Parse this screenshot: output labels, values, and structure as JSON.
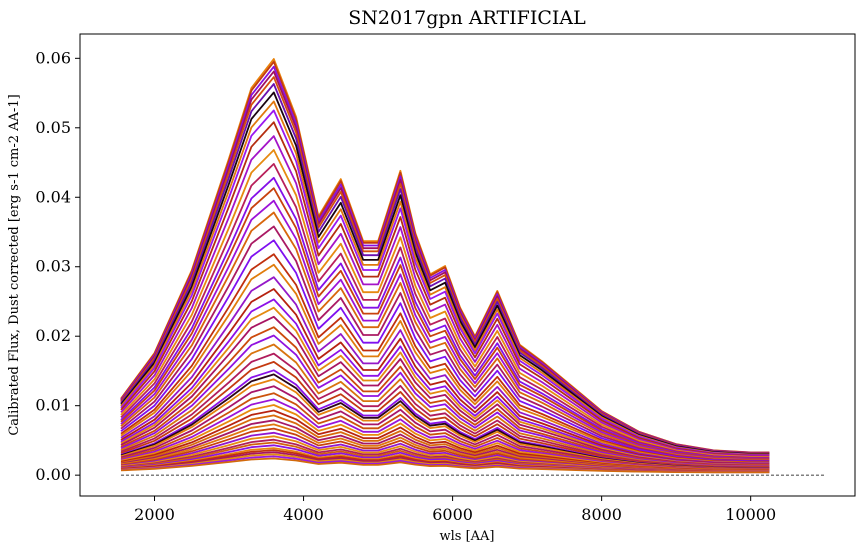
{
  "chart_data": {
    "type": "line",
    "title": "SN2017gpn ARTIFICIAL",
    "xlabel": "wls [AA]",
    "ylabel": "Calibrated Flux, Dust corrected [erg s-1 cm-2 AA-1]",
    "xlim": [
      1000,
      11400
    ],
    "ylim": [
      -0.003,
      0.0635
    ],
    "xticks": [
      2000,
      4000,
      6000,
      8000,
      10000
    ],
    "xtick_labels": [
      "2000",
      "4000",
      "6000",
      "8000",
      "10000"
    ],
    "yticks": [
      0.0,
      0.01,
      0.02,
      0.03,
      0.04,
      0.05,
      0.06
    ],
    "ytick_labels": [
      "0.00",
      "0.01",
      "0.02",
      "0.03",
      "0.04",
      "0.05",
      "0.06"
    ],
    "grid": false,
    "legend": "none",
    "reference_line": {
      "y": 0.0,
      "x": [
        1550,
        11000
      ],
      "style": "dashed",
      "color": "#000000"
    },
    "template_x": [
      1550,
      2000,
      2500,
      3000,
      3300,
      3600,
      3900,
      4200,
      4500,
      4800,
      5000,
      5300,
      5500,
      5700,
      5900,
      6100,
      6300,
      6600,
      6900,
      7200,
      7600,
      8000,
      8500,
      9000,
      9500,
      10000,
      10250
    ],
    "template_profile": [
      0.18,
      0.29,
      0.49,
      0.76,
      0.93,
      1.0,
      0.86,
      0.62,
      0.71,
      0.56,
      0.56,
      0.73,
      0.58,
      0.48,
      0.5,
      0.4,
      0.33,
      0.44,
      0.31,
      0.27,
      0.21,
      0.15,
      0.1,
      0.07,
      0.055,
      0.05,
      0.05
    ],
    "series": [
      {
        "peak": 0.0596,
        "color": "#e8820a"
      },
      {
        "peak": 0.0592,
        "color": "#c23b12"
      },
      {
        "peak": 0.0585,
        "color": "#8a12e0"
      },
      {
        "peak": 0.0578,
        "color": "#a01060"
      },
      {
        "peak": 0.057,
        "color": "#d5500c"
      },
      {
        "peak": 0.056,
        "color": "#6b10b0"
      },
      {
        "peak": 0.0548,
        "color": "#1a0410"
      },
      {
        "peak": 0.0535,
        "color": "#e0780e"
      },
      {
        "peak": 0.0522,
        "color": "#9a18f0"
      },
      {
        "peak": 0.0505,
        "color": "#b52e10"
      },
      {
        "peak": 0.0485,
        "color": "#a414c8"
      },
      {
        "peak": 0.0465,
        "color": "#e68a10"
      },
      {
        "peak": 0.0445,
        "color": "#b8205a"
      },
      {
        "peak": 0.0425,
        "color": "#8410e8"
      },
      {
        "peak": 0.041,
        "color": "#c8420e"
      },
      {
        "peak": 0.0392,
        "color": "#9c12d8"
      },
      {
        "peak": 0.0375,
        "color": "#d8660c"
      },
      {
        "peak": 0.0355,
        "color": "#aa1a64"
      },
      {
        "peak": 0.0335,
        "color": "#7e10f0"
      },
      {
        "peak": 0.0315,
        "color": "#c0300e"
      },
      {
        "peak": 0.03,
        "color": "#e07c0c"
      },
      {
        "peak": 0.0282,
        "color": "#9418c8"
      },
      {
        "peak": 0.0265,
        "color": "#b62210"
      },
      {
        "peak": 0.025,
        "color": "#8c10e8"
      },
      {
        "peak": 0.0238,
        "color": "#e48a10"
      },
      {
        "peak": 0.0225,
        "color": "#a81462"
      },
      {
        "peak": 0.021,
        "color": "#cc4a0c"
      },
      {
        "peak": 0.0198,
        "color": "#9012e0"
      },
      {
        "peak": 0.0185,
        "color": "#d8740e"
      },
      {
        "peak": 0.0172,
        "color": "#b01c5c"
      },
      {
        "peak": 0.016,
        "color": "#c43a10"
      },
      {
        "peak": 0.0148,
        "color": "#8a12e8"
      },
      {
        "peak": 0.0142,
        "color": "#2a0618"
      },
      {
        "peak": 0.0135,
        "color": "#e6820e"
      },
      {
        "peak": 0.0125,
        "color": "#a8166a"
      },
      {
        "peak": 0.0115,
        "color": "#cc520c"
      },
      {
        "peak": 0.0106,
        "color": "#9a14d8"
      },
      {
        "peak": 0.0098,
        "color": "#e88a0e"
      },
      {
        "peak": 0.009,
        "color": "#b82410"
      },
      {
        "peak": 0.0083,
        "color": "#d86a0c"
      },
      {
        "peak": 0.0076,
        "color": "#a41868"
      },
      {
        "peak": 0.007,
        "color": "#e07810"
      },
      {
        "peak": 0.0064,
        "color": "#c8420e"
      },
      {
        "peak": 0.0058,
        "color": "#9016d0"
      },
      {
        "peak": 0.0053,
        "color": "#e68c12"
      },
      {
        "peak": 0.0048,
        "color": "#b0205c"
      },
      {
        "peak": 0.0044,
        "color": "#d2600c"
      },
      {
        "peak": 0.004,
        "color": "#8c14e0"
      },
      {
        "peak": 0.0036,
        "color": "#e88010"
      },
      {
        "peak": 0.0033,
        "color": "#c0300e"
      },
      {
        "peak": 0.003,
        "color": "#a81660"
      },
      {
        "peak": 0.0027,
        "color": "#e28a10"
      },
      {
        "peak": 0.0024,
        "color": "#9a18e0"
      },
      {
        "peak": 0.0021,
        "color": "#d26a0c"
      }
    ]
  }
}
